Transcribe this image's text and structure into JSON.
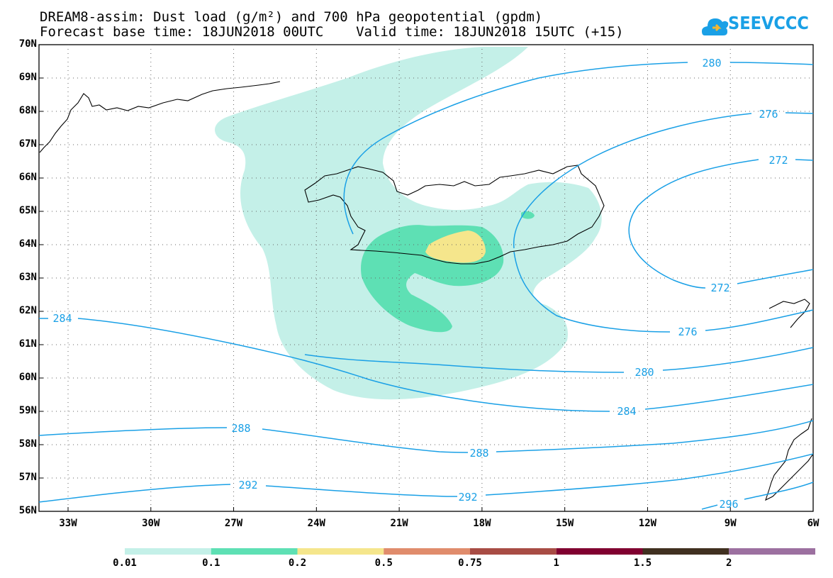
{
  "header": {
    "title_line1": "DREAM8-assim: Dust load (g/m²) and 700 hPa geopotential (gpdm)",
    "title_line2": "Forecast base time: 18JUN2018 00UTC    Valid time: 18JUN2018 15UTC (+15)",
    "logo_text": "SEEVCCC"
  },
  "axes": {
    "lat_labels": [
      "70N",
      "69N",
      "68N",
      "67N",
      "66N",
      "65N",
      "64N",
      "63N",
      "62N",
      "61N",
      "60N",
      "59N",
      "58N",
      "57N",
      "56N"
    ],
    "lon_labels": [
      "33W",
      "30W",
      "27W",
      "24W",
      "21W",
      "18W",
      "15W",
      "12W",
      "9W",
      "6W"
    ]
  },
  "contours": {
    "labels": [
      "280",
      "276",
      "272",
      "272",
      "276",
      "280",
      "284",
      "284",
      "288",
      "288",
      "292",
      "292",
      "296"
    ],
    "color": "#1aa0e6"
  },
  "colorbar": {
    "colors": [
      "#c4f0e8",
      "#5ee0b4",
      "#f5e68c",
      "#e08c6c",
      "#a84c44",
      "#800030",
      "#403020",
      "#9c70a0"
    ],
    "labels": [
      "0.01",
      "0.1",
      "0.2",
      "0.5",
      "0.75",
      "1",
      "1.5",
      "2"
    ]
  }
}
